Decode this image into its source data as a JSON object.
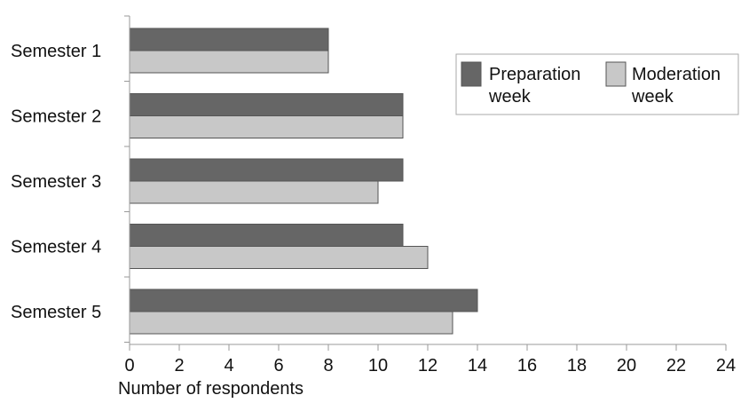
{
  "chart_data": {
    "type": "bar",
    "orientation": "horizontal",
    "categories": [
      "Semester 1",
      "Semester 2",
      "Semester 3",
      "Semester 4",
      "Semester 5"
    ],
    "series": [
      {
        "name": "Preparation week",
        "values": [
          8,
          11,
          11,
          11,
          14
        ],
        "color": "#666666"
      },
      {
        "name": "Moderation week",
        "values": [
          8,
          11,
          10,
          12,
          13
        ],
        "color": "#c8c8c8"
      }
    ],
    "title": "",
    "xlabel": "Number of respondents",
    "ylabel": "",
    "xlim": [
      0,
      24
    ],
    "xticks": [
      "0",
      "2",
      "4",
      "6",
      "8",
      "10",
      "12",
      "14",
      "16",
      "18",
      "20",
      "22",
      "24"
    ],
    "grid": false,
    "legend_position": "top-right",
    "legend": {
      "entries": [
        {
          "lines": [
            "Preparation",
            "week"
          ],
          "series": 0
        },
        {
          "lines": [
            "Moderation",
            "week"
          ],
          "series": 1
        }
      ]
    }
  }
}
